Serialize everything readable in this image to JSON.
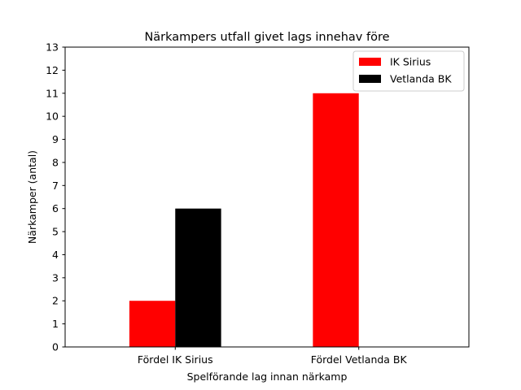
{
  "chart_data": {
    "type": "bar",
    "title": "Närkampers utfall givet lags innehav före",
    "xlabel": "Spelförande lag innan närkamp",
    "ylabel": "Närkamper (antal)",
    "categories": [
      "Fördel IK Sirius",
      "Fördel Vetlanda BK"
    ],
    "series": [
      {
        "name": "IK Sirius",
        "color": "#ff0000",
        "values": [
          2,
          11
        ]
      },
      {
        "name": "Vetlanda BK",
        "color": "#000000",
        "values": [
          6,
          0
        ]
      }
    ],
    "ylim": [
      0,
      13
    ],
    "yticks": [
      0,
      1,
      2,
      3,
      4,
      5,
      6,
      7,
      8,
      9,
      10,
      11,
      12,
      13
    ],
    "grid": false,
    "legend_position": "top-right"
  }
}
